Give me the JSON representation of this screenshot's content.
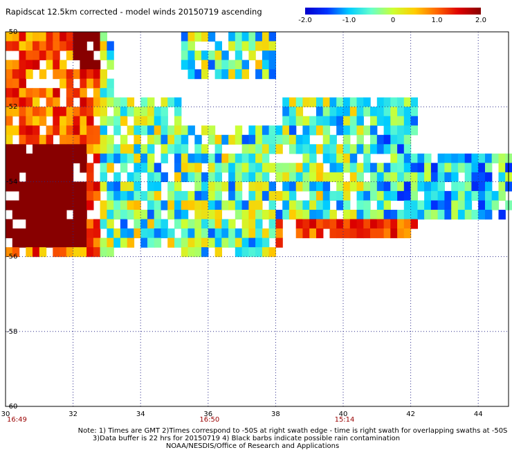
{
  "chart_data": {
    "type": "heatmap",
    "title": "Rapidscat 12.5km corrected - model winds 20150719 ascending",
    "x_ticks": [
      "30",
      "32",
      "34",
      "36",
      "38",
      "40",
      "42",
      "44"
    ],
    "y_ticks": [
      "-50",
      "-52",
      "-54",
      "-56",
      "-58",
      "-60"
    ],
    "xlim": [
      30,
      45
    ],
    "ylim": [
      -60,
      -50
    ],
    "grid": true,
    "colorbar": {
      "labels": [
        "-2.0",
        "-1.0",
        "0",
        "1.0",
        "2.0"
      ],
      "range": [
        -2.0,
        2.0
      ],
      "colors": [
        "#0000cc",
        "#0033ff",
        "#00ccff",
        "#66ffcc",
        "#ccff33",
        "#ffcc00",
        "#ff6600",
        "#dd0000",
        "#880000"
      ]
    },
    "swath_times": [
      {
        "lon": 30,
        "label": "16:49"
      },
      {
        "lon": 36,
        "label": "16:50"
      },
      {
        "lon": 40,
        "label": "15:14"
      }
    ],
    "time_color": "#990000",
    "notes": [
      "Note: 1) Times are GMT 2)Times correspond to -50S at right swath edge - time is right swath for overlapping swaths at -50S",
      "3)Data buffer is 22 hrs for 20150719 4) Black barbs indicate possible rain contamination",
      "NOAA/NESDIS/Office of Research and Applications"
    ]
  }
}
